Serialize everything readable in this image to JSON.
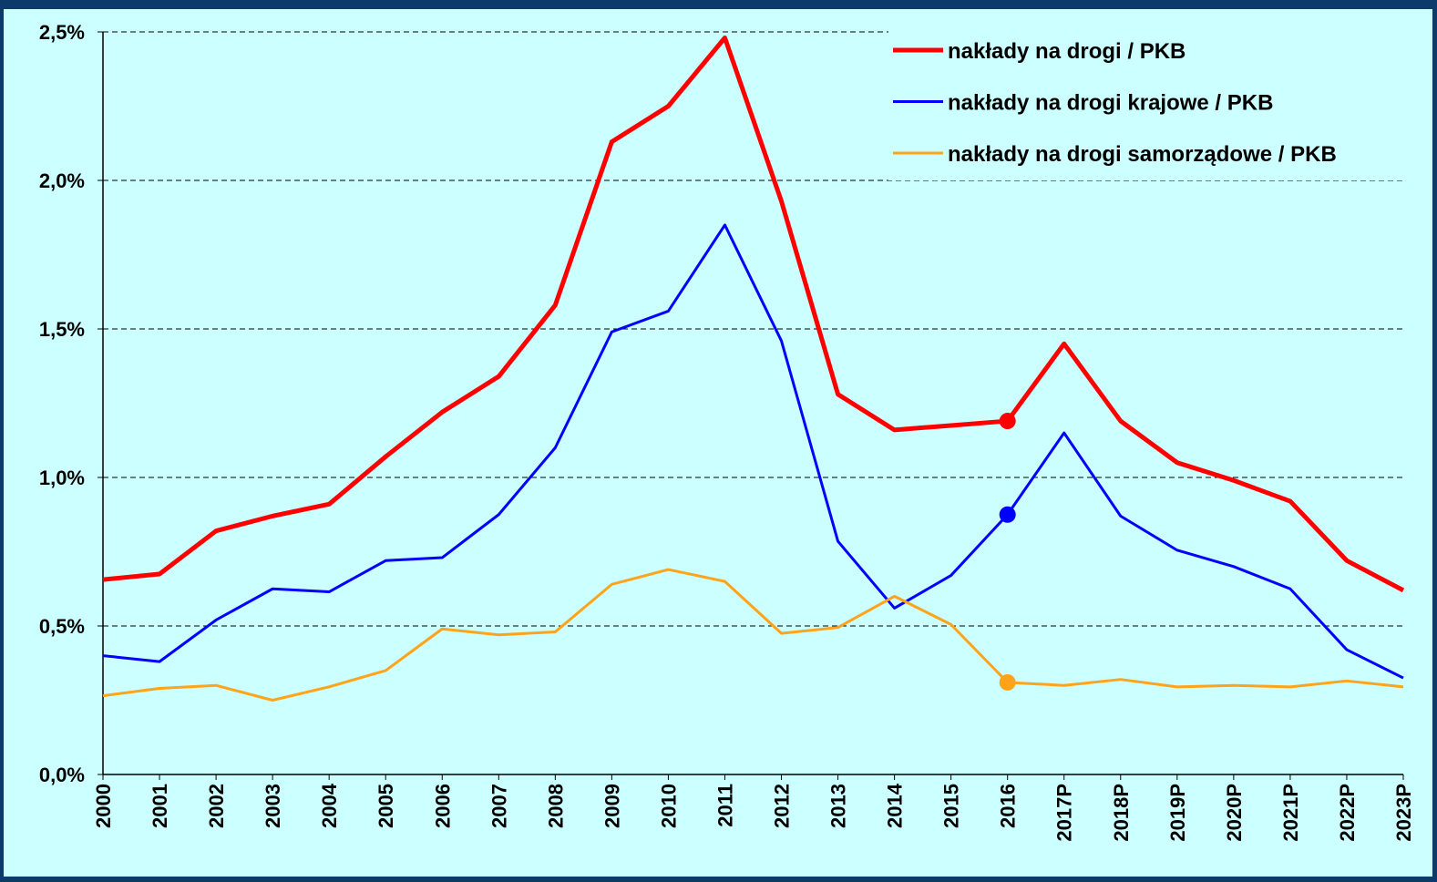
{
  "chart_data": {
    "type": "line",
    "categories": [
      "2000",
      "2001",
      "2002",
      "2003",
      "2004",
      "2005",
      "2006",
      "2007",
      "2008",
      "2009",
      "2010",
      "2011",
      "2012",
      "2013",
      "2014",
      "2015",
      "2016",
      "2017P",
      "2018P",
      "2019P",
      "2020P",
      "2021P",
      "2022P",
      "2023P"
    ],
    "series": [
      {
        "name": "nakłady na drogi / PKB",
        "color": "#ff0000",
        "width": 5,
        "values": [
          0.656,
          0.675,
          0.82,
          0.87,
          0.91,
          1.07,
          1.22,
          1.34,
          1.58,
          2.13,
          2.25,
          2.48,
          1.93,
          1.28,
          1.16,
          1.175,
          1.19,
          1.45,
          1.19,
          1.05,
          0.99,
          0.92,
          0.72,
          0.62
        ]
      },
      {
        "name": "nakłady na drogi krajowe / PKB",
        "color": "#0000ff",
        "width": 3,
        "values": [
          0.4,
          0.38,
          0.52,
          0.625,
          0.615,
          0.72,
          0.73,
          0.875,
          1.1,
          1.49,
          1.56,
          1.85,
          1.46,
          0.785,
          0.56,
          0.67,
          0.875,
          1.15,
          0.87,
          0.755,
          0.7,
          0.625,
          0.42,
          0.325
        ]
      },
      {
        "name": "nakłady na drogi samorządowe / PKB",
        "color": "#ffa31a",
        "width": 3,
        "values": [
          0.265,
          0.29,
          0.3,
          0.25,
          0.295,
          0.35,
          0.49,
          0.47,
          0.48,
          0.64,
          0.69,
          0.65,
          0.475,
          0.495,
          0.6,
          0.505,
          0.31,
          0.3,
          0.32,
          0.295,
          0.3,
          0.295,
          0.315,
          0.295
        ]
      }
    ],
    "highlight_category": "2016",
    "ylim": [
      0,
      2.5
    ],
    "yticks": [
      {
        "value": 0,
        "label": "0,0%"
      },
      {
        "value": 0.5,
        "label": "0,5%"
      },
      {
        "value": 1,
        "label": "1,0%"
      },
      {
        "value": 1.5,
        "label": "1,5%"
      },
      {
        "value": 2,
        "label": "2,0%"
      },
      {
        "value": 2.5,
        "label": "2,5%"
      }
    ],
    "grid": true,
    "legend": "top-right",
    "background": "#ccffff"
  }
}
